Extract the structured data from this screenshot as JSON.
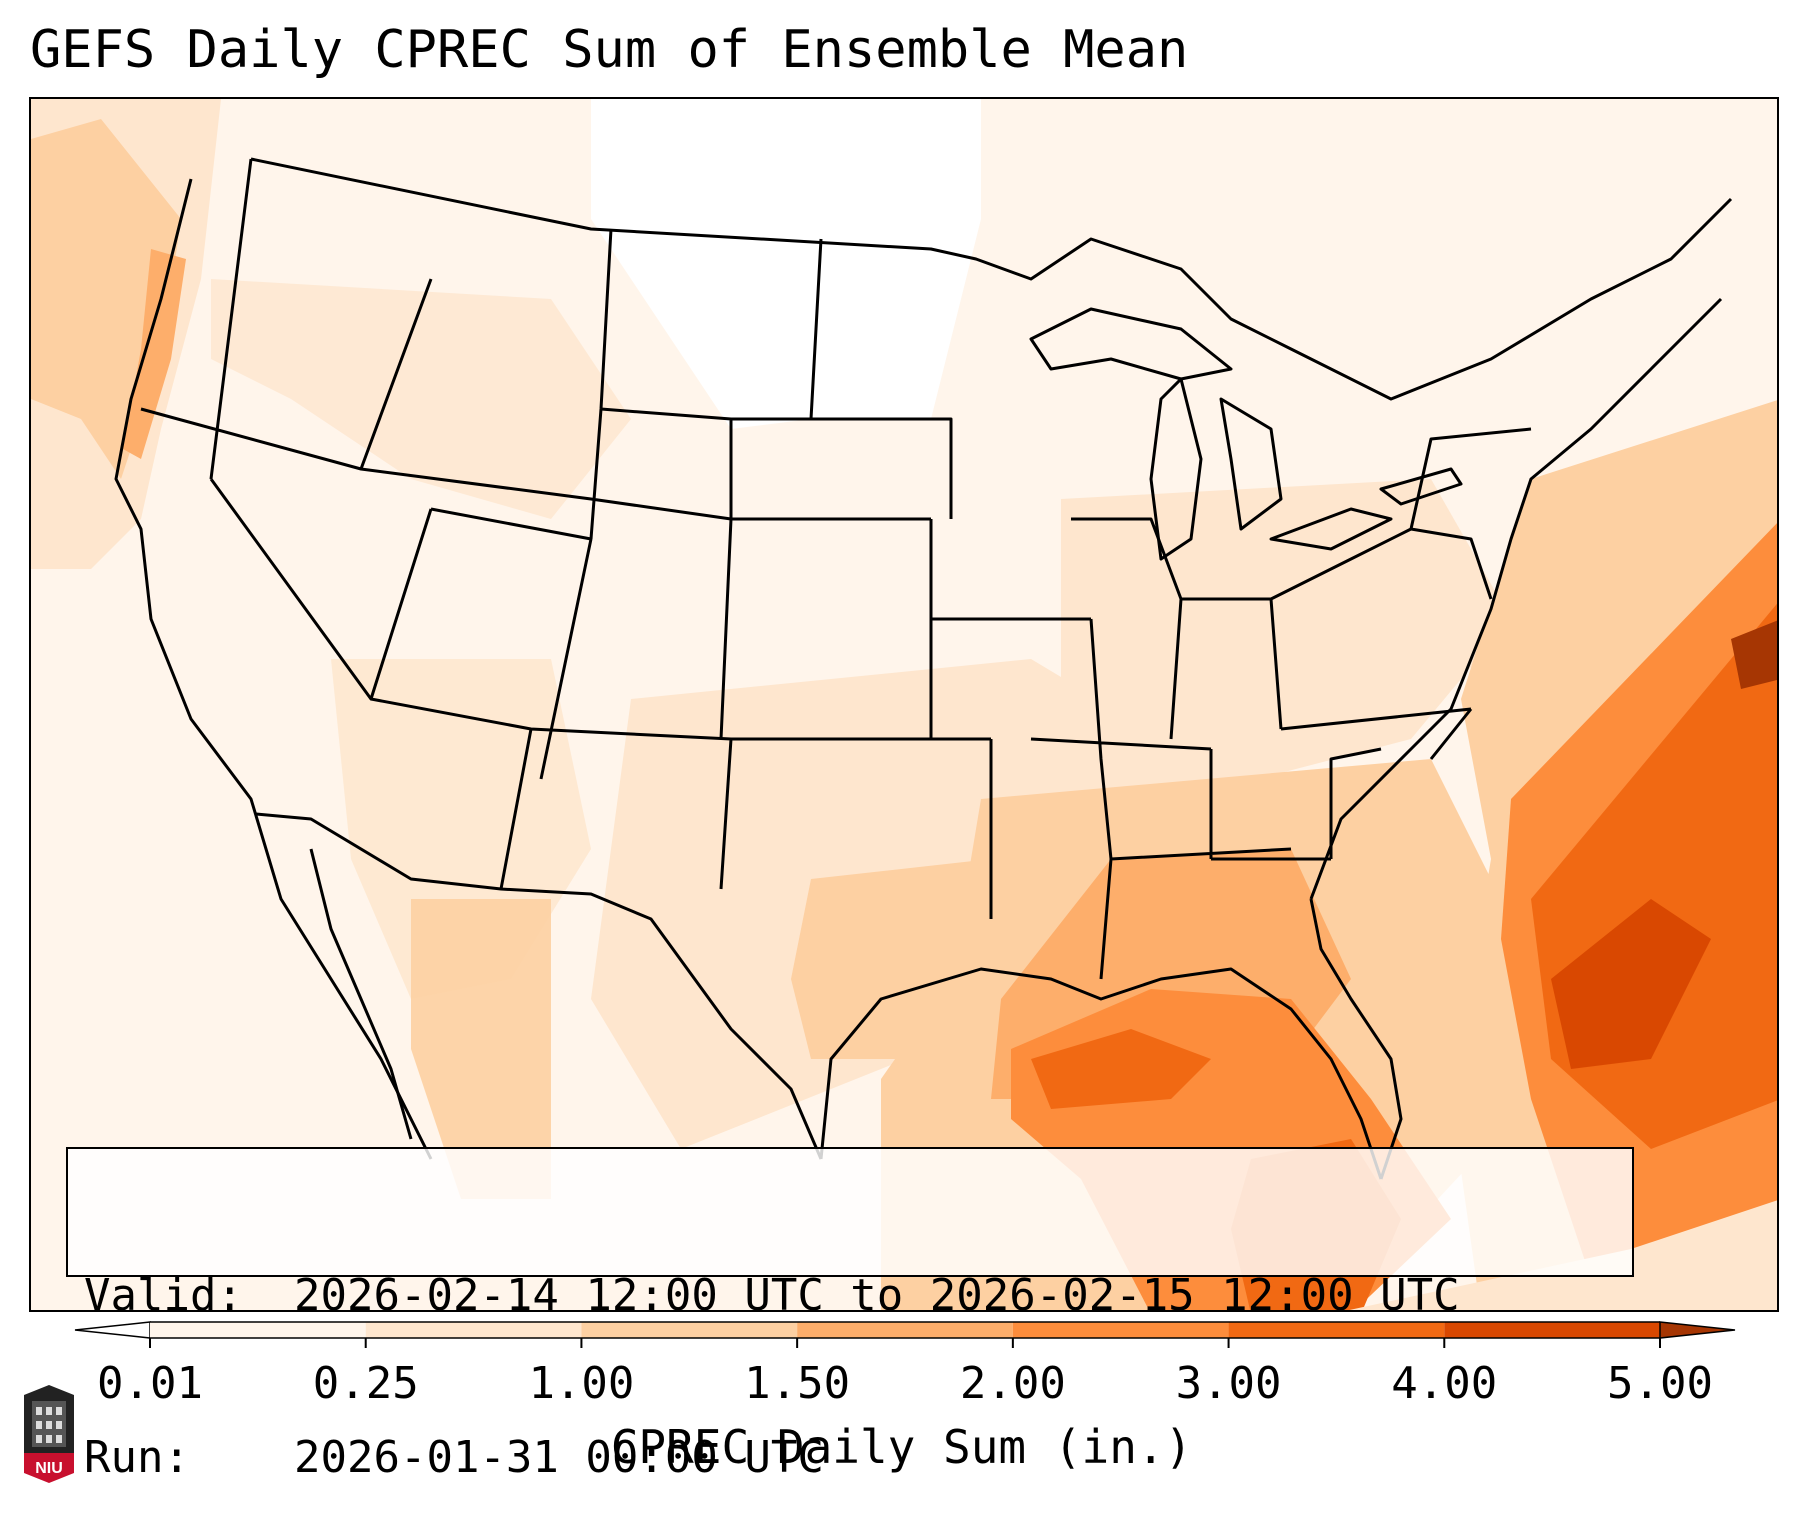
{
  "title": "GEFS Daily CPREC Sum of Ensemble Mean",
  "info": {
    "valid_label": "Valid:",
    "valid_value": "2026-02-14 12:00 UTC to 2026-02-15 12:00 UTC",
    "run_label": "Run:",
    "run_value": "2026-01-31 00:00 UTC"
  },
  "colorbar": {
    "label": "CPREC Daily Sum (in.)",
    "ticks": [
      "0.01",
      "0.25",
      "1.00",
      "1.50",
      "2.00",
      "3.00",
      "4.00",
      "5.00"
    ],
    "colors": [
      "#fff5eb",
      "#fee6ce",
      "#fdd0a2",
      "#fdae6b",
      "#fd8d3c",
      "#f16913",
      "#d94801",
      "#a63603"
    ],
    "under_color": "#ffffff",
    "over_color": "#a63603"
  },
  "map": {
    "projection": "Lambert Conformal (CONUS)",
    "precip_regions": [
      {
        "name": "gulf-coast-max",
        "level": 5
      },
      {
        "name": "atlantic-offshore-max",
        "level": 6
      },
      {
        "name": "lower-mississippi",
        "level": 4
      },
      {
        "name": "texas-south",
        "level": 3
      },
      {
        "name": "pacific-northwest-coast",
        "level": 4
      },
      {
        "name": "northern-plains-dry",
        "level": -1
      }
    ]
  },
  "logo": {
    "text": "NIU"
  }
}
